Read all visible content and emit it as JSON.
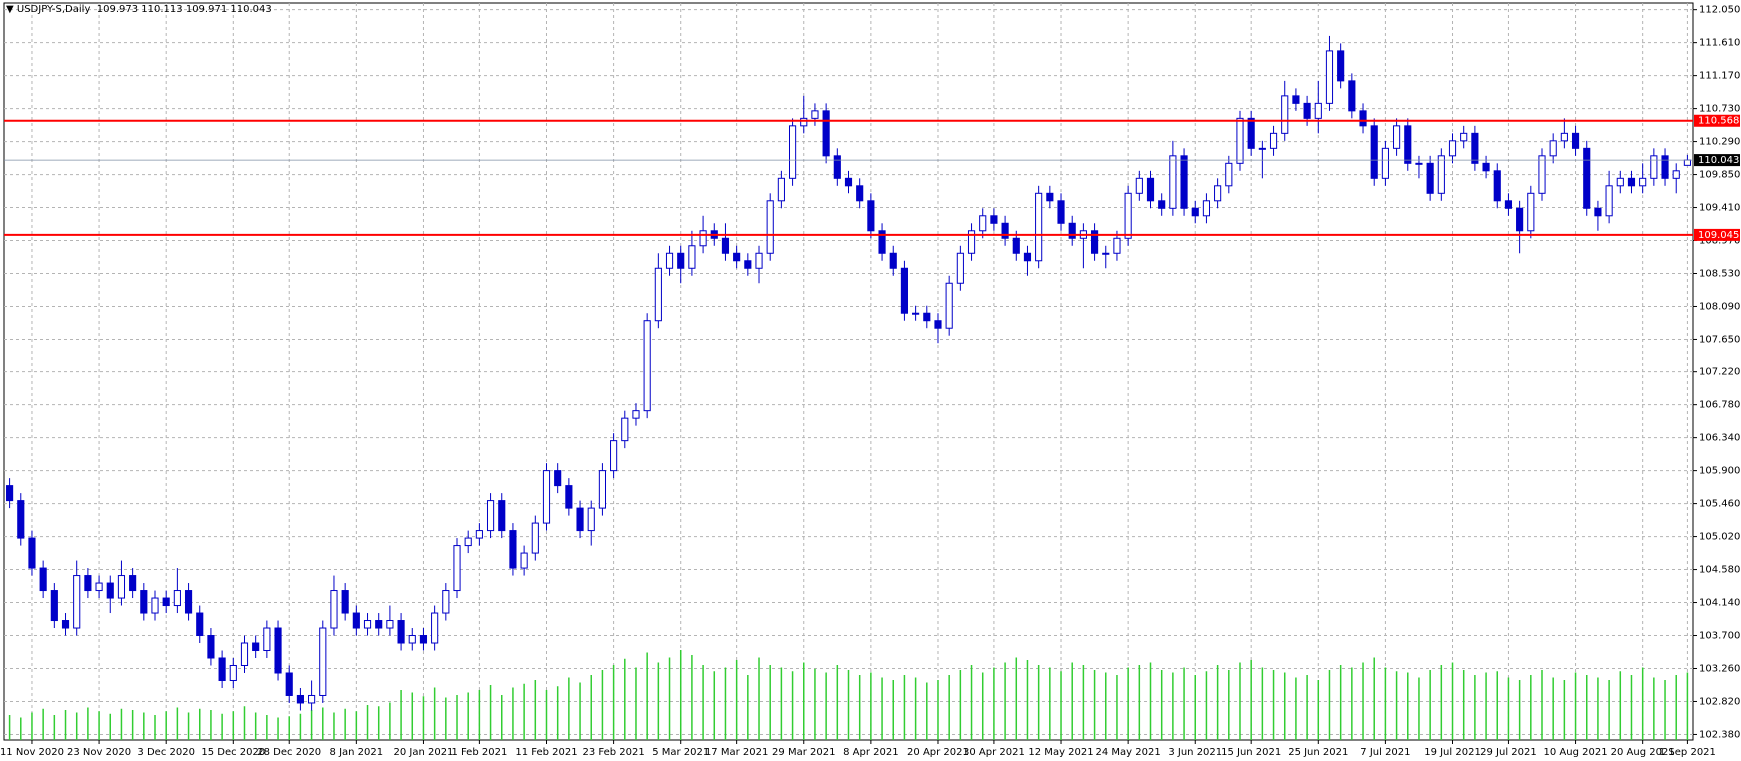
{
  "chart_data": {
    "type": "candlestick",
    "title": "USDJPY-S,Daily",
    "categories": [
      null,
      null,
      "11 Nov 2020",
      null,
      null,
      null,
      null,
      null,
      "23 Nov 2020",
      null,
      null,
      null,
      null,
      null,
      "3 Dec 2020",
      null,
      null,
      null,
      null,
      null,
      "15 Dec 2020",
      null,
      null,
      null,
      null,
      "28 Dec 2020",
      null,
      null,
      null,
      null,
      null,
      "8 Jan 2021",
      null,
      null,
      null,
      null,
      null,
      "20 Jan 2021",
      null,
      null,
      null,
      null,
      "1 Feb 2021",
      null,
      null,
      null,
      null,
      null,
      "11 Feb 2021",
      null,
      null,
      null,
      null,
      null,
      "23 Feb 2021",
      null,
      null,
      null,
      null,
      null,
      "5 Mar 2021",
      null,
      null,
      null,
      null,
      "17 Mar 2021",
      null,
      null,
      null,
      null,
      null,
      "29 Mar 2021",
      null,
      null,
      null,
      null,
      null,
      "8 Apr 2021",
      null,
      null,
      null,
      null,
      null,
      "20 Apr 2021",
      null,
      null,
      null,
      null,
      "30 Apr 2021",
      null,
      null,
      null,
      null,
      null,
      "12 May 2021",
      null,
      null,
      null,
      null,
      null,
      "24 May 2021",
      null,
      null,
      null,
      null,
      null,
      "3 Jun 2021",
      null,
      null,
      null,
      null,
      "15 Jun 2021",
      null,
      null,
      null,
      null,
      null,
      "25 Jun 2021",
      null,
      null,
      null,
      null,
      null,
      "7 Jul 2021",
      null,
      null,
      null,
      null,
      null,
      "19 Jul 2021",
      null,
      null,
      null,
      null,
      "29 Jul 2021",
      null,
      null,
      null,
      null,
      null,
      "10 Aug 2021",
      null,
      null,
      null,
      null,
      null,
      "20 Aug 2021",
      null,
      null,
      null,
      "1 Sep 2021"
    ],
    "open": [
      105.7,
      105.5,
      105.0,
      104.6,
      104.3,
      103.9,
      103.8,
      104.5,
      104.3,
      104.4,
      104.2,
      104.5,
      104.3,
      104.0,
      104.2,
      104.1,
      104.3,
      104.0,
      103.7,
      103.4,
      103.1,
      103.3,
      103.6,
      103.5,
      103.8,
      103.2,
      102.9,
      102.8,
      102.9,
      103.8,
      104.3,
      104.0,
      103.8,
      103.9,
      103.8,
      103.9,
      103.6,
      103.7,
      103.6,
      104.0,
      104.3,
      104.9,
      105.0,
      105.1,
      105.5,
      105.1,
      104.6,
      104.8,
      105.2,
      105.9,
      105.7,
      105.4,
      105.1,
      105.4,
      105.9,
      106.3,
      106.6,
      106.7,
      107.9,
      108.6,
      108.8,
      108.6,
      108.9,
      109.1,
      109.0,
      108.8,
      108.7,
      108.6,
      108.8,
      109.5,
      109.8,
      110.5,
      110.6,
      110.7,
      110.1,
      109.8,
      109.7,
      109.5,
      109.1,
      108.8,
      108.6,
      108.0,
      108.0,
      107.9,
      107.8,
      108.4,
      108.8,
      109.1,
      109.3,
      109.2,
      109.0,
      108.8,
      108.7,
      109.6,
      109.5,
      109.2,
      109.0,
      109.1,
      108.8,
      108.8,
      109.0,
      109.6,
      109.8,
      109.5,
      109.4,
      110.1,
      109.4,
      109.3,
      109.5,
      109.7,
      110.0,
      110.6,
      110.2,
      110.2,
      110.4,
      110.9,
      110.8,
      110.6,
      110.8,
      111.5,
      111.1,
      110.7,
      110.5,
      109.8,
      110.2,
      110.5,
      110.0,
      110.0,
      109.6,
      110.1,
      110.3,
      110.4,
      110.0,
      109.9,
      109.5,
      109.4,
      109.1,
      109.6,
      110.1,
      110.3,
      110.4,
      110.2,
      109.4,
      109.3,
      109.7,
      109.8,
      109.7,
      109.8,
      110.1,
      109.8,
      109.973
    ],
    "high": [
      105.8,
      105.6,
      105.1,
      104.7,
      104.4,
      104.0,
      104.7,
      104.6,
      104.5,
      104.5,
      104.7,
      104.6,
      104.4,
      104.3,
      104.3,
      104.6,
      104.4,
      104.1,
      103.8,
      103.5,
      103.4,
      103.7,
      103.7,
      103.9,
      103.9,
      103.3,
      103.0,
      103.1,
      103.9,
      104.5,
      104.4,
      104.1,
      104.0,
      104.0,
      104.1,
      104.0,
      103.8,
      103.8,
      104.1,
      104.4,
      105.0,
      105.1,
      105.2,
      105.6,
      105.6,
      105.2,
      104.9,
      105.3,
      106.0,
      106.0,
      105.8,
      105.5,
      105.5,
      106.0,
      106.4,
      106.7,
      106.8,
      108.0,
      108.8,
      108.9,
      108.9,
      109.1,
      109.3,
      109.2,
      109.2,
      108.9,
      108.8,
      108.9,
      109.6,
      109.9,
      110.6,
      110.9,
      110.8,
      110.8,
      110.2,
      109.9,
      109.8,
      109.6,
      109.2,
      108.9,
      108.7,
      108.1,
      108.1,
      108.0,
      108.5,
      108.9,
      109.2,
      109.4,
      109.4,
      109.3,
      109.1,
      108.9,
      109.7,
      109.7,
      109.6,
      109.3,
      109.2,
      109.2,
      108.9,
      109.1,
      109.7,
      109.9,
      109.9,
      109.6,
      110.3,
      110.2,
      109.5,
      109.6,
      109.8,
      110.1,
      110.7,
      110.7,
      110.3,
      110.5,
      111.1,
      111.0,
      110.9,
      111.1,
      111.7,
      111.6,
      111.2,
      110.8,
      110.6,
      110.3,
      110.6,
      110.6,
      110.1,
      110.1,
      110.2,
      110.4,
      110.5,
      110.5,
      110.1,
      110.0,
      109.6,
      109.5,
      109.7,
      110.2,
      110.4,
      110.6,
      110.5,
      110.3,
      109.5,
      109.9,
      109.9,
      109.9,
      110.0,
      110.2,
      110.2,
      110.0,
      110.113
    ],
    "low": [
      105.4,
      104.9,
      104.5,
      104.2,
      103.8,
      103.7,
      103.7,
      104.2,
      104.2,
      104.0,
      104.1,
      104.2,
      103.9,
      103.9,
      104.0,
      104.0,
      103.9,
      103.6,
      103.3,
      103.0,
      103.0,
      103.2,
      103.4,
      103.4,
      103.1,
      102.8,
      102.7,
      102.7,
      102.8,
      103.7,
      103.9,
      103.7,
      103.7,
      103.7,
      103.7,
      103.5,
      103.5,
      103.5,
      103.5,
      103.9,
      104.2,
      104.8,
      104.9,
      105.0,
      105.0,
      104.5,
      104.5,
      104.7,
      105.1,
      105.6,
      105.3,
      105.0,
      104.9,
      105.3,
      105.8,
      106.2,
      106.5,
      106.6,
      107.8,
      108.5,
      108.4,
      108.5,
      108.8,
      108.9,
      108.7,
      108.6,
      108.5,
      108.4,
      108.7,
      109.4,
      109.7,
      110.4,
      110.5,
      110.0,
      109.7,
      109.6,
      109.4,
      109.0,
      108.7,
      108.5,
      107.9,
      107.9,
      107.8,
      107.6,
      107.7,
      108.3,
      108.7,
      109.0,
      109.1,
      108.9,
      108.7,
      108.5,
      108.6,
      109.4,
      109.1,
      108.9,
      108.6,
      108.7,
      108.6,
      108.7,
      108.9,
      109.5,
      109.4,
      109.3,
      109.3,
      109.3,
      109.2,
      109.2,
      109.4,
      109.6,
      109.9,
      110.1,
      109.8,
      110.1,
      110.3,
      110.7,
      110.5,
      110.4,
      110.7,
      111.0,
      110.6,
      110.4,
      109.7,
      109.7,
      110.1,
      109.9,
      109.8,
      109.5,
      109.5,
      110.0,
      110.2,
      109.9,
      109.8,
      109.4,
      109.3,
      108.8,
      109.0,
      109.5,
      110.0,
      110.2,
      110.1,
      109.3,
      109.1,
      109.2,
      109.6,
      109.6,
      109.6,
      109.7,
      109.7,
      109.6,
      109.971
    ],
    "close": [
      105.5,
      105.0,
      104.6,
      104.3,
      103.9,
      103.8,
      104.5,
      104.3,
      104.4,
      104.2,
      104.5,
      104.3,
      104.0,
      104.2,
      104.1,
      104.3,
      104.0,
      103.7,
      103.4,
      103.1,
      103.3,
      103.6,
      103.5,
      103.8,
      103.2,
      102.9,
      102.8,
      102.9,
      103.8,
      104.3,
      104.0,
      103.8,
      103.9,
      103.8,
      103.9,
      103.6,
      103.7,
      103.6,
      104.0,
      104.3,
      104.9,
      105.0,
      105.1,
      105.5,
      105.1,
      104.6,
      104.8,
      105.2,
      105.9,
      105.7,
      105.4,
      105.1,
      105.4,
      105.9,
      106.3,
      106.6,
      106.7,
      107.9,
      108.6,
      108.8,
      108.6,
      108.9,
      109.1,
      109.0,
      108.8,
      108.7,
      108.6,
      108.8,
      109.5,
      109.8,
      110.5,
      110.6,
      110.7,
      110.1,
      109.8,
      109.7,
      109.5,
      109.1,
      108.8,
      108.6,
      108.0,
      108.0,
      107.9,
      107.8,
      108.4,
      108.8,
      109.1,
      109.3,
      109.2,
      109.0,
      108.8,
      108.7,
      109.6,
      109.5,
      109.2,
      109.0,
      109.1,
      108.8,
      108.8,
      109.0,
      109.6,
      109.8,
      109.5,
      109.4,
      110.1,
      109.4,
      109.3,
      109.5,
      109.7,
      110.0,
      110.6,
      110.2,
      110.2,
      110.4,
      110.9,
      110.8,
      110.6,
      110.8,
      111.5,
      111.1,
      110.7,
      110.5,
      109.8,
      110.2,
      110.5,
      110.0,
      110.0,
      109.6,
      110.1,
      110.3,
      110.4,
      110.0,
      109.9,
      109.5,
      109.4,
      109.1,
      109.6,
      110.1,
      110.3,
      110.4,
      110.2,
      109.4,
      109.3,
      109.7,
      109.8,
      109.7,
      109.8,
      110.1,
      109.8,
      109.9,
      110.043
    ],
    "volume": [
      20,
      18,
      22,
      25,
      20,
      24,
      22,
      26,
      23,
      21,
      25,
      24,
      22,
      20,
      23,
      26,
      22,
      25,
      24,
      21,
      23,
      27,
      22,
      20,
      18,
      19,
      21,
      24,
      26,
      22,
      25,
      23,
      28,
      27,
      30,
      40,
      38,
      35,
      42,
      34,
      36,
      38,
      40,
      44,
      36,
      42,
      45,
      48,
      40,
      43,
      50,
      46,
      52,
      56,
      60,
      65,
      58,
      70,
      62,
      66,
      72,
      68,
      60,
      55,
      58,
      64,
      52,
      66,
      60,
      58,
      55,
      62,
      57,
      54,
      60,
      56,
      52,
      54,
      50,
      48,
      52,
      50,
      46,
      48,
      52,
      56,
      60,
      54,
      58,
      62,
      66,
      64,
      60,
      58,
      55,
      62,
      60,
      56,
      54,
      52,
      58,
      60,
      62,
      56,
      54,
      58,
      52,
      55,
      60,
      56,
      62,
      64,
      58,
      56,
      54,
      50,
      52,
      48,
      56,
      60,
      58,
      62,
      66,
      58,
      55,
      54,
      50,
      56,
      60,
      62,
      56,
      52,
      54,
      55,
      50,
      48,
      52,
      56,
      50,
      48,
      54,
      52,
      50,
      48,
      55,
      52,
      58,
      50,
      48,
      52,
      54
    ],
    "candle_color": "#0000c8",
    "volume_color": "#32cd32",
    "ylim": [
      102.306,
      112.139
    ],
    "yticks": [
      {
        "value": 112.05,
        "label": "112.050"
      },
      {
        "value": 111.61,
        "label": "111.610"
      },
      {
        "value": 111.17,
        "label": "111.170"
      },
      {
        "value": 110.73,
        "label": "110.730"
      },
      {
        "value": 110.29,
        "label": "110.290"
      },
      {
        "value": 109.85,
        "label": "109.850"
      },
      {
        "value": 109.41,
        "label": "109.410"
      },
      {
        "value": 108.97,
        "label": "108.970"
      },
      {
        "value": 108.53,
        "label": "108.530"
      },
      {
        "value": 108.09,
        "label": "108.090"
      },
      {
        "value": 107.65,
        "label": "107.650"
      },
      {
        "value": 107.22,
        "label": "107.220"
      },
      {
        "value": 106.78,
        "label": "106.780"
      },
      {
        "value": 106.34,
        "label": "106.340"
      },
      {
        "value": 105.9,
        "label": "105.900"
      },
      {
        "value": 105.46,
        "label": "105.460"
      },
      {
        "value": 105.02,
        "label": "105.020"
      },
      {
        "value": 104.58,
        "label": "104.580"
      },
      {
        "value": 104.14,
        "label": "104.140"
      },
      {
        "value": 103.7,
        "label": "103.700"
      },
      {
        "value": 103.26,
        "label": "103.260"
      },
      {
        "value": 102.82,
        "label": "102.820"
      },
      {
        "value": 102.38,
        "label": "102.380"
      }
    ],
    "grid": true,
    "levels": [
      110.568,
      109.045
    ],
    "level_color": "#ff0000",
    "last_price": 110.043
  }
}
